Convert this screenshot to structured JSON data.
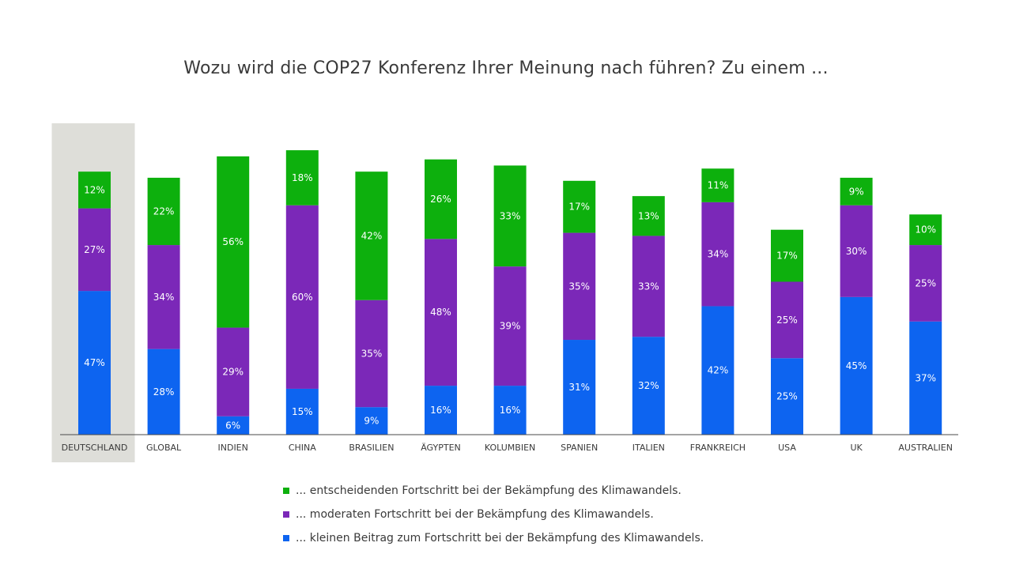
{
  "title": "Wozu wird die COP27 Konferenz Ihrer Meinung nach führen? Zu einem ...",
  "colors": {
    "green": "#0db00d",
    "purple": "#7b28b8",
    "blue": "#0d64f0",
    "highlight": "#deded9",
    "axis": "#4a4a4a",
    "text": "#3a3a3a"
  },
  "legend": [
    {
      "label": "... entscheidenden Fortschritt  bei der Bekämpfung des Klimawandels.",
      "color": "#0db00d"
    },
    {
      "label": "... moderaten Fortschritt  bei der Bekämpfung des Klimawandels.",
      "color": "#7b28b8"
    },
    {
      "label": "... kleinen Beitrag zum Fortschritt bei der Bekämpfung des Klimawandels.",
      "color": "#0d64f0"
    }
  ],
  "chart_data": {
    "type": "bar",
    "stacked": true,
    "title": "Wozu wird die COP27 Konferenz Ihrer Meinung nach führen? Zu einem ...",
    "categories": [
      "DEUTSCHLAND",
      "GLOBAL",
      "INDIEN",
      "CHINA",
      "BRASILIEN",
      "ÄGYPTEN",
      "KOLUMBIEN",
      "SPANIEN",
      "ITALIEN",
      "FRANKREICH",
      "USA",
      "UK",
      "AUSTRALIEN"
    ],
    "highlighted_category": "DEUTSCHLAND",
    "series": [
      {
        "name": "... kleinen Beitrag zum Fortschritt bei der Bekämpfung des Klimawandels.",
        "color": "#0d64f0",
        "values": [
          47,
          28,
          6,
          15,
          9,
          16,
          16,
          31,
          32,
          42,
          25,
          45,
          37
        ]
      },
      {
        "name": "... moderaten Fortschritt  bei der Bekämpfung des Klimawandels.",
        "color": "#7b28b8",
        "values": [
          27,
          34,
          29,
          60,
          35,
          48,
          39,
          35,
          33,
          34,
          25,
          30,
          25
        ]
      },
      {
        "name": "... entscheidenden Fortschritt  bei der Bekämpfung des Klimawandels.",
        "color": "#0db00d",
        "values": [
          12,
          22,
          56,
          18,
          42,
          26,
          33,
          17,
          13,
          11,
          17,
          9,
          10
        ]
      }
    ],
    "value_suffix": "%",
    "ylim": [
      0,
      100
    ],
    "legend_position": "bottom-center",
    "grid": false
  }
}
